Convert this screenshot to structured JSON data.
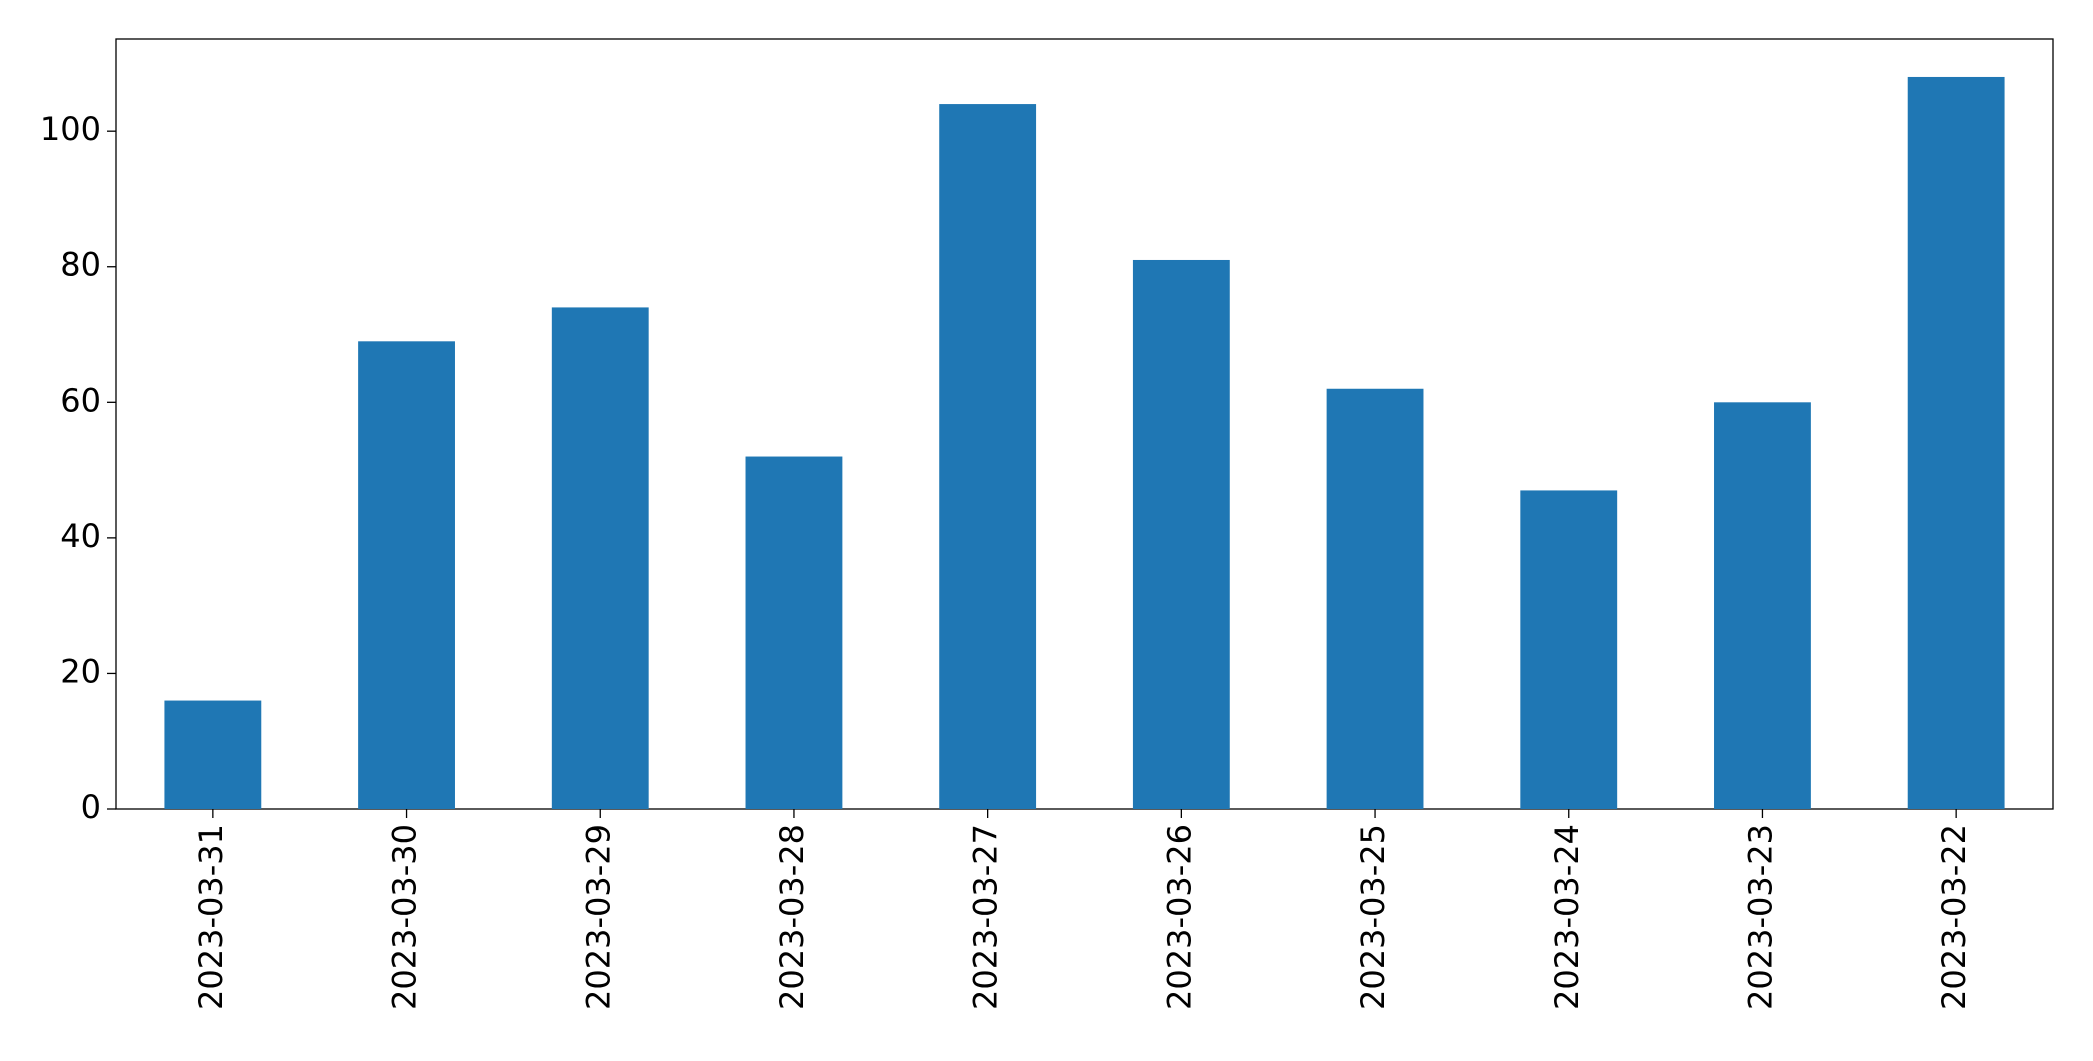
{
  "chart_data": {
    "type": "bar",
    "categories": [
      "2023-03-31",
      "2023-03-30",
      "2023-03-29",
      "2023-03-28",
      "2023-03-27",
      "2023-03-26",
      "2023-03-25",
      "2023-03-24",
      "2023-03-23",
      "2023-03-22"
    ],
    "values": [
      16,
      69,
      74,
      52,
      104,
      81,
      62,
      47,
      60,
      108
    ],
    "color": "#1f77b4",
    "ylim": [
      0,
      113.6
    ],
    "yticks": [
      0,
      20,
      40,
      60,
      80,
      100
    ],
    "grid": false
  }
}
